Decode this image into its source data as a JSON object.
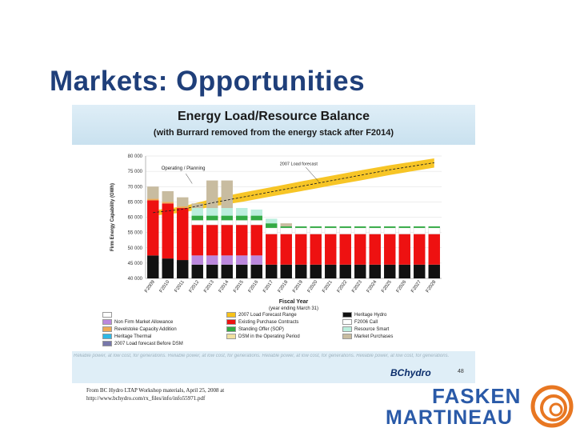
{
  "slide": {
    "title": "Markets:  Opportunities"
  },
  "source_note": [
    "From BC Hydro LTAP Workshop materials, April 25, 2008 at",
    "http://www.bchydro.com/rx_files/info/info55971.pdf"
  ],
  "footer": {
    "tagline": "Reliable power, at low cost, for generations. Reliable power, at low cost, for generations. Reliable power, at low cost, for generations. Reliable power, at low cost, for generations.",
    "logo_text": "BChydro",
    "page_number": "48"
  },
  "brand": {
    "line1": "FASKEN",
    "line2": "MARTINEAU",
    "color": "#2a5aa8",
    "swirl_color": "#e87722"
  },
  "chart_data": {
    "type": "bar",
    "title": "Energy Load/Resource Balance",
    "subtitle": "(with Burrard removed from the energy stack after F2014)",
    "xlabel": "Fiscal Year",
    "xlabel_sub": "(year ending March 31)",
    "ylabel": "Firm Energy Capability (GWh)",
    "ylim": [
      40000,
      80000
    ],
    "yticks": [
      "40 000",
      "45 000",
      "50 000",
      "55 000",
      "60 000",
      "65 000",
      "70 000",
      "75 000",
      "80 000"
    ],
    "categories": [
      "F2009",
      "F2010",
      "F2011",
      "F2012",
      "F2013",
      "F2014",
      "F2015",
      "F2016",
      "F2017",
      "F2018",
      "F2019",
      "F2020",
      "F2021",
      "F2022",
      "F2023",
      "F2024",
      "F2025",
      "F2026",
      "F2027",
      "F2028"
    ],
    "series": [
      {
        "name": "Heritage Hydro",
        "color": "#111111",
        "values": [
          7500,
          6500,
          6000,
          4500,
          4500,
          4500,
          4500,
          4500,
          4500,
          4500,
          4500,
          4500,
          4500,
          4500,
          4500,
          4500,
          4500,
          4500,
          4500,
          4500
        ]
      },
      {
        "name": "Heritage Thermal",
        "color": "#2eb8e6",
        "values": [
          0,
          0,
          0,
          0,
          0,
          0,
          0,
          0,
          0,
          0,
          0,
          0,
          0,
          0,
          0,
          0,
          0,
          0,
          0,
          0
        ]
      },
      {
        "name": "Non Firm Market Allowance",
        "color": "#bb88dd",
        "values": [
          0,
          0,
          0,
          3000,
          3000,
          3000,
          3000,
          3000,
          0,
          0,
          0,
          0,
          0,
          0,
          0,
          0,
          0,
          0,
          0,
          0
        ]
      },
      {
        "name": "Existing Purchase Contracts",
        "color": "#ee1111",
        "values": [
          18000,
          18000,
          17000,
          10000,
          10000,
          10000,
          10000,
          10000,
          10000,
          10000,
          10000,
          10000,
          10000,
          10000,
          10000,
          10000,
          10000,
          10000,
          10000,
          10000
        ]
      },
      {
        "name": "F2006 Call",
        "color": "#ffffff",
        "values": [
          0,
          0,
          0,
          1500,
          1500,
          1500,
          1500,
          1500,
          2000,
          2000,
          2000,
          2000,
          2000,
          2000,
          2000,
          2000,
          2000,
          2000,
          2000,
          2000
        ]
      },
      {
        "name": "Standing Offer (SOP)",
        "color": "#33aa44",
        "values": [
          0,
          0,
          0,
          1500,
          1500,
          1500,
          1500,
          1500,
          1500,
          500,
          500,
          500,
          500,
          500,
          500,
          500,
          500,
          500,
          500,
          500
        ]
      },
      {
        "name": "Resource Smart",
        "color": "#bbeedd",
        "values": [
          0,
          0,
          0,
          2500,
          2500,
          2500,
          2500,
          2000,
          1500,
          0,
          0,
          0,
          0,
          0,
          0,
          0,
          0,
          0,
          0,
          0
        ]
      },
      {
        "name": "Revelstoke Capacity Addition",
        "color": "#eeaa55",
        "values": [
          500,
          500,
          500,
          0,
          0,
          0,
          0,
          0,
          0,
          0,
          0,
          0,
          0,
          0,
          0,
          0,
          0,
          0,
          0,
          0
        ]
      },
      {
        "name": "Market Purchases",
        "color": "#c8bca0",
        "values": [
          4000,
          3500,
          3000,
          1500,
          9000,
          9000,
          0,
          0,
          0,
          1000,
          0,
          0,
          0,
          0,
          0,
          0,
          0,
          0,
          0,
          0
        ]
      }
    ],
    "bar_overlay": {
      "name": "Heritage Thermal",
      "color": "#2eb8e6",
      "start_category": "F2013",
      "end_category": "F2014"
    },
    "forecast_band": {
      "name": "2007 Load Forecast Range",
      "color": "#f7c21a",
      "x": [
        "F2009",
        "F2011",
        "F2013",
        "F2015",
        "F2017",
        "F2019",
        "F2021",
        "F2023",
        "F2025",
        "F2028"
      ],
      "low": [
        60500,
        61500,
        63500,
        65000,
        66800,
        68500,
        70300,
        72000,
        73800,
        76200
      ],
      "high": [
        62200,
        63500,
        66000,
        68000,
        69800,
        71700,
        73500,
        75300,
        77000,
        79200
      ]
    },
    "forecast_line": {
      "name": "2007 Load forecast",
      "x": [
        "F2009",
        "F2011",
        "F2013",
        "F2015",
        "F2017",
        "F2019",
        "F2021",
        "F2023",
        "F2025",
        "F2028"
      ],
      "y": [
        61500,
        62600,
        64700,
        66500,
        68300,
        70100,
        71900,
        73700,
        75500,
        77800
      ]
    },
    "annotations": [
      "Operating / Planning",
      "2007 Load forecast"
    ],
    "legend": [
      {
        "label": "",
        "color": "#ffffff"
      },
      {
        "label": "2007 Load Forecast Range",
        "color": "#f7c21a"
      },
      {
        "label": "Heritage Hydro",
        "color": "#111111"
      },
      {
        "label": "Non Firm Market Allowance",
        "color": "#bb88dd"
      },
      {
        "label": "Existing Purchase Contracts",
        "color": "#ee1111"
      },
      {
        "label": "F2006 Call",
        "color": "#ffffff"
      },
      {
        "label": "Revelstoke Capacity Addition",
        "color": "#eeaa55"
      },
      {
        "label": "Standing Offer (SOP)",
        "color": "#33aa44"
      },
      {
        "label": "Resource Smart",
        "color": "#bbeedd"
      },
      {
        "label": "Heritage Thermal",
        "color": "#2eb8e6"
      },
      {
        "label": "DSM in the Operating Period",
        "color": "#f0e0a0"
      },
      {
        "label": "Market Purchases",
        "color": "#c8bca0"
      },
      {
        "label": "2007 Load forecast Before DSM",
        "color": "#7777aa"
      }
    ]
  }
}
